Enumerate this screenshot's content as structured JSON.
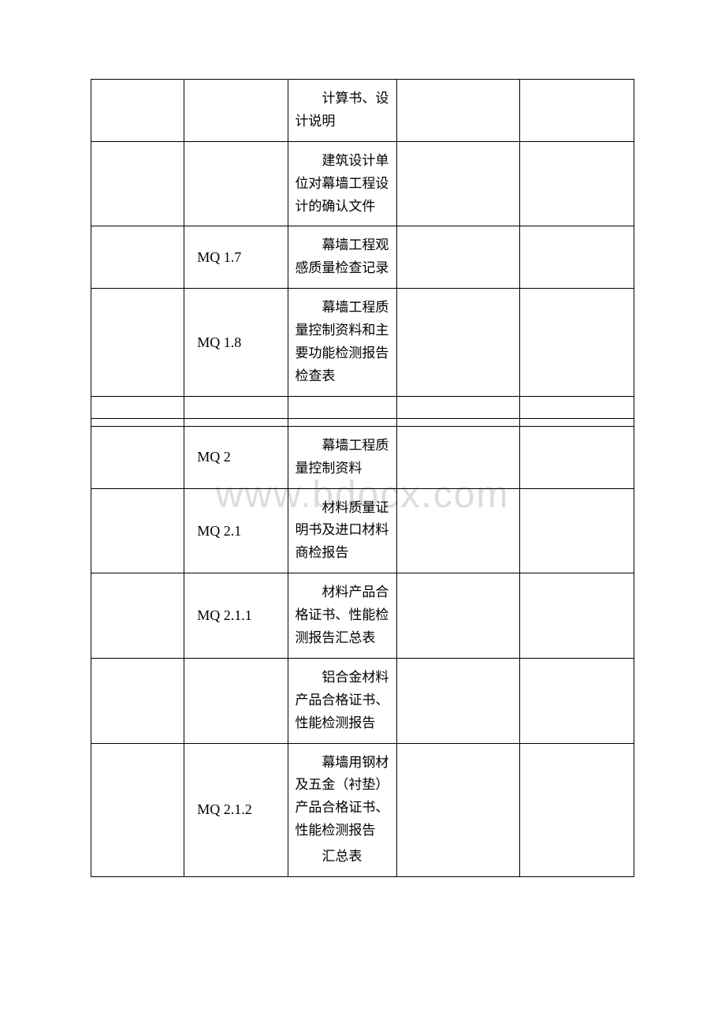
{
  "watermark": "www.bdocx.com",
  "table": {
    "columns": [
      "col-1",
      "col-2",
      "col-3",
      "col-4",
      "col-5"
    ],
    "rows": [
      {
        "code": "",
        "desc": "计算书、设计说明",
        "codeWrap": false
      },
      {
        "code": "",
        "desc": "建筑设计单位对幕墙工程设计的确认文件",
        "codeWrap": false
      },
      {
        "code": "MQ 1.7",
        "desc": "幕墙工程观感质量检查记录",
        "codeWrap": false
      },
      {
        "code": "MQ 1.8",
        "desc": "幕墙工程质量控制资料和主要功能检测报告检查表",
        "codeWrap": false
      },
      {
        "type": "empty"
      },
      {
        "type": "spacer"
      },
      {
        "code": "MQ 2",
        "desc": "幕墙工程质量控制资料",
        "codeWrap": false
      },
      {
        "code": "MQ 2.1",
        "desc": "材料质量证明书及进口材料商检报告",
        "codeWrap": false
      },
      {
        "code": "MQ 2.1.1",
        "desc": "材料产品合格证书、性能检测报告汇总表",
        "codeWrap": true
      },
      {
        "code": "",
        "desc": "铝合金材料产品合格证书、性能检测报告",
        "codeWrap": false
      },
      {
        "code": "MQ 2.1.2",
        "desc": "幕墙用钢材及五金（衬垫）产品合格证书、性能检测报告",
        "desc2": "汇总表",
        "codeWrap": true
      }
    ]
  },
  "styling": {
    "border_color": "#000000",
    "text_color": "#000000",
    "background_color": "#ffffff",
    "watermark_color": "#dcdcdc",
    "font_family_cn": "SimSun",
    "font_family_en": "Times New Roman",
    "cell_fontsize": 17,
    "code_fontsize": 18,
    "watermark_fontsize": 48
  }
}
